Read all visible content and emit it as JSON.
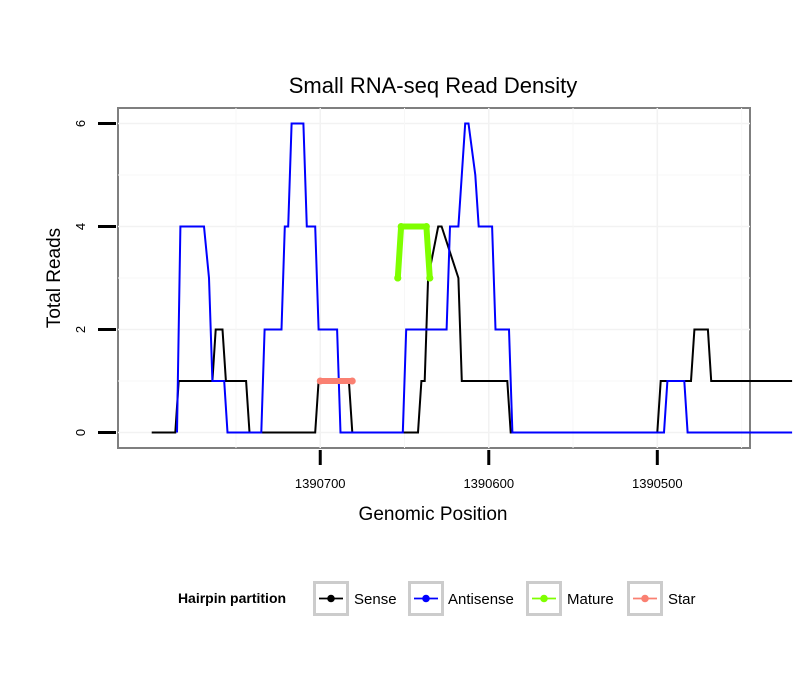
{
  "chart_data": {
    "type": "line",
    "title": "Small RNA-seq Read Density",
    "xlabel": "Genomic Position",
    "ylabel": "Total Reads",
    "x_reversed": true,
    "xlim": [
      1390820,
      1390445
    ],
    "ylim": [
      -0.3,
      6.3
    ],
    "xticks": [
      {
        "value": 1390700,
        "label": "1390700"
      },
      {
        "value": 1390600,
        "label": "1390600"
      },
      {
        "value": 1390500,
        "label": "1390500"
      }
    ],
    "yticks": [
      {
        "value": 0,
        "label": "0"
      },
      {
        "value": 2,
        "label": "2"
      },
      {
        "value": 4,
        "label": "4"
      },
      {
        "value": 6,
        "label": "6"
      }
    ],
    "grid": true,
    "legend": {
      "title": "Hairpin partition",
      "position": "bottom",
      "entries": [
        {
          "name": "Sense",
          "color": "#000000"
        },
        {
          "name": "Antisense",
          "color": "#0000ff"
        },
        {
          "name": "Mature",
          "color": "#7fff00"
        },
        {
          "name": "Star",
          "color": "#fa8072"
        }
      ]
    },
    "series": [
      {
        "name": "Sense",
        "color": "#000000",
        "x": [
          1390800,
          1390786,
          1390784,
          1390772,
          1390770,
          1390764,
          1390762,
          1390758,
          1390756,
          1390744,
          1390742,
          1390703,
          1390701,
          1390683,
          1390681,
          1390642,
          1390640,
          1390638,
          1390636,
          1390630,
          1390628,
          1390618,
          1390616,
          1390589,
          1390587,
          1390500,
          1390498,
          1390480,
          1390478,
          1390470,
          1390468,
          1390420
        ],
        "y": [
          0,
          0,
          1,
          1,
          1,
          1,
          2,
          2,
          1,
          1,
          0,
          0,
          1,
          1,
          0,
          0,
          1,
          1,
          3,
          4,
          4,
          3,
          1,
          1,
          0,
          0,
          1,
          1,
          2,
          2,
          1,
          1
        ]
      },
      {
        "name": "Antisense",
        "color": "#0000ff",
        "x": [
          1390785,
          1390783,
          1390771,
          1390769,
          1390766,
          1390764,
          1390761,
          1390759,
          1390757,
          1390755,
          1390735,
          1390733,
          1390723,
          1390721,
          1390719,
          1390717,
          1390710,
          1390708,
          1390703,
          1390701,
          1390690,
          1390688,
          1390678,
          1390676,
          1390669,
          1390667,
          1390651,
          1390649,
          1390625,
          1390623,
          1390618,
          1390616,
          1390614,
          1390612,
          1390608,
          1390606,
          1390598,
          1390596,
          1390588,
          1390586,
          1390496,
          1390494,
          1390484,
          1390482,
          1390420
        ],
        "y": [
          0,
          4,
          4,
          4,
          3,
          1,
          1,
          1,
          1,
          0,
          0,
          2,
          2,
          4,
          4,
          6,
          6,
          4,
          4,
          2,
          2,
          0,
          0,
          0,
          0,
          0,
          0,
          2,
          2,
          4,
          4,
          5,
          6,
          6,
          5,
          4,
          4,
          2,
          2,
          0,
          0,
          1,
          1,
          0,
          0
        ]
      },
      {
        "name": "Mature",
        "color": "#7fff00",
        "thick": true,
        "x": [
          1390654,
          1390654,
          1390652,
          1390637,
          1390635,
          1390635
        ],
        "y": [
          3,
          3,
          4,
          4,
          3,
          3
        ]
      },
      {
        "name": "Star",
        "color": "#fa8072",
        "thick": true,
        "x": [
          1390700,
          1390681
        ],
        "y": [
          1,
          1
        ]
      }
    ]
  }
}
